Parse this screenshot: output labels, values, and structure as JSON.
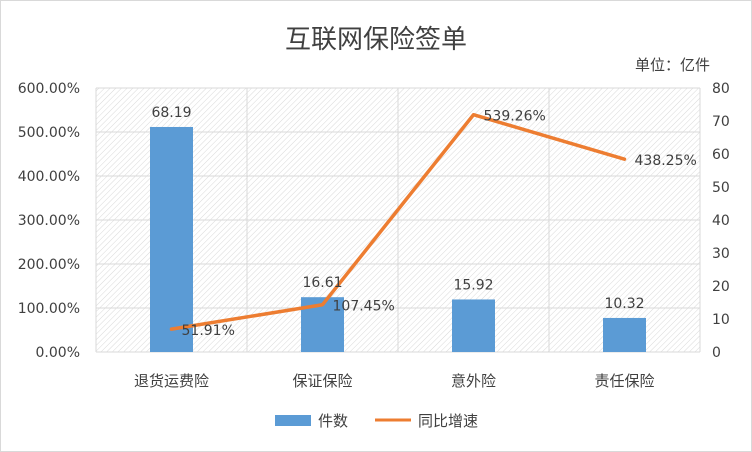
{
  "chart_data": {
    "type": "bar",
    "title": "互联网保险签单",
    "unit_label": "单位：亿件",
    "categories": [
      "退货运费险",
      "保证保险",
      "意外险",
      "责任保险"
    ],
    "series": [
      {
        "name": "件数",
        "type": "bar",
        "axis": "right",
        "values": [
          68.19,
          16.61,
          15.92,
          10.32
        ],
        "labels": [
          "68.19",
          "16.61",
          "15.92",
          "10.32"
        ],
        "color": "#5b9bd5"
      },
      {
        "name": "同比增速",
        "type": "line",
        "axis": "left",
        "values": [
          51.91,
          107.45,
          539.26,
          438.25
        ],
        "labels": [
          "51.91%",
          "107.45%",
          "539.26%",
          "438.25%"
        ],
        "color": "#ed7d31"
      }
    ],
    "left_axis": {
      "min": 0,
      "max": 600,
      "step": 100,
      "ticks": [
        "0.00%",
        "100.00%",
        "200.00%",
        "300.00%",
        "400.00%",
        "500.00%",
        "600.00%"
      ]
    },
    "right_axis": {
      "min": 0,
      "max": 80,
      "step": 10,
      "ticks": [
        "0",
        "10",
        "20",
        "30",
        "40",
        "50",
        "60",
        "70",
        "80"
      ]
    },
    "legend_position": "bottom",
    "grid": "horizontal",
    "plot_background": "hatched"
  }
}
